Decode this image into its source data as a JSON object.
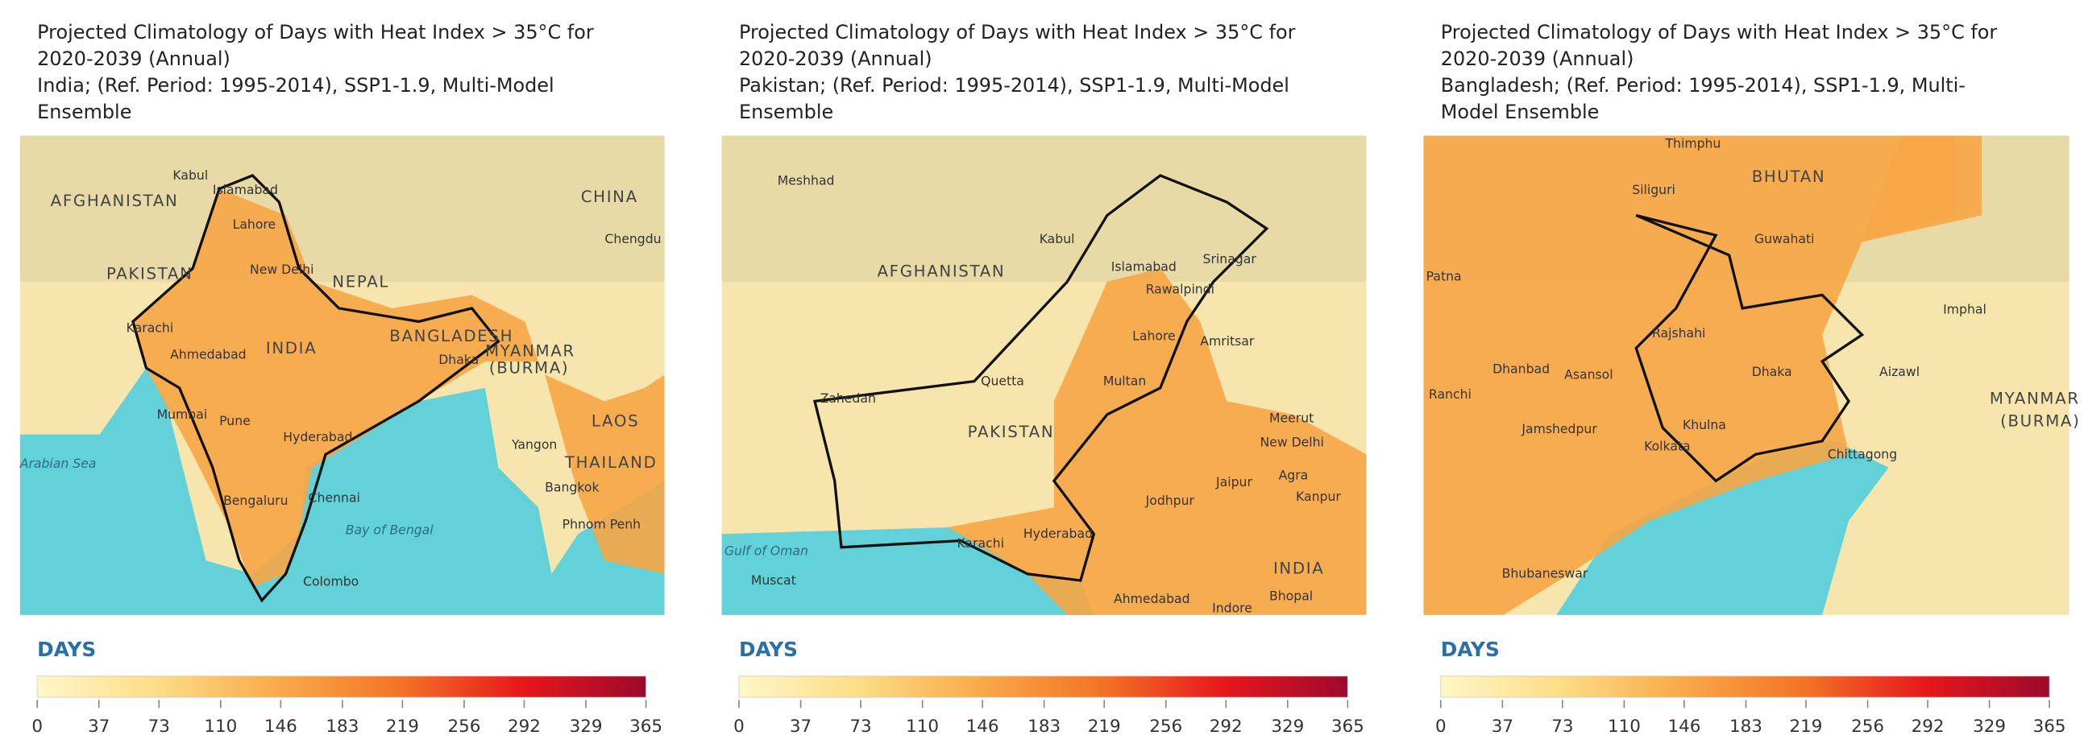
{
  "panels": [
    {
      "title": [
        "Projected Climatology of Days with Heat Index > 35°C for",
        "2020-2039 (Annual)",
        "India; (Ref. Period: 1995-2014), SSP1-1.9, Multi-Model",
        "Ensemble"
      ],
      "map_labels": [
        "Kabul",
        "Islamabad",
        "AFGHANISTAN",
        "CHINA",
        "Chengdu",
        "Lahore",
        "PAKISTAN",
        "New Delhi",
        "NEPAL",
        "Karachi",
        "BANGLADESH",
        "Ahmedabad",
        "INDIA",
        "Dhaka",
        "MYANMAR",
        "(BURMA)",
        "Mumbai",
        "Pune",
        "Hyderabad",
        "LAOS",
        "Yangon",
        "Arabian Sea",
        "THAILAND",
        "Chennai",
        "Bengaluru",
        "Bangkok",
        "Bay of Bengal",
        "Phnom Penh",
        "Colombo"
      ],
      "legend": {
        "title": "DAYS",
        "ticks": [
          0,
          37,
          73,
          110,
          146,
          183,
          219,
          256,
          292,
          329,
          365
        ]
      }
    },
    {
      "title": [
        "Projected Climatology of Days with Heat Index > 35°C for",
        "2020-2039 (Annual)",
        "Pakistan; (Ref. Period: 1995-2014), SSP1-1.9, Multi-Model",
        "Ensemble"
      ],
      "map_labels": [
        "Meshhad",
        "Kabul",
        "AFGHANISTAN",
        "Islamabad",
        "Srinagar",
        "Rawalpindi",
        "Lahore",
        "Amritsar",
        "Quetta",
        "Multan",
        "Zahedan",
        "PAKISTAN",
        "Meerut",
        "New Delhi",
        "Jaipur",
        "Agra",
        "Kanpur",
        "Jodhpur",
        "Gulf of Oman",
        "Karachi",
        "Hyderabad",
        "INDIA",
        "Muscat",
        "Ahmedabad",
        "Indore",
        "Bhopal"
      ],
      "legend": {
        "title": "DAYS",
        "ticks": [
          0,
          37,
          73,
          110,
          146,
          183,
          219,
          256,
          292,
          329,
          365
        ]
      }
    },
    {
      "title": [
        "Projected Climatology of Days with Heat Index > 35°C for",
        "2020-2039 (Annual)",
        "Bangladesh; (Ref. Period: 1995-2014), SSP1-1.9, Multi-",
        "Model Ensemble"
      ],
      "map_labels": [
        "Thimphu",
        "BHUTAN",
        "Siliguri",
        "Guwahati",
        "Patna",
        "Imphal",
        "Rajshahi",
        "Dhanbad",
        "Asansol",
        "Dhaka",
        "Aizawl",
        "Ranchi",
        "MYANMAR",
        "(BURMA)",
        "Jamshedpur",
        "Khulna",
        "Kolkata",
        "Chittagong",
        "Bhubaneswar"
      ],
      "legend": {
        "title": "DAYS",
        "ticks": [
          0,
          37,
          73,
          110,
          146,
          183,
          219,
          256,
          292,
          329,
          365
        ]
      }
    }
  ]
}
